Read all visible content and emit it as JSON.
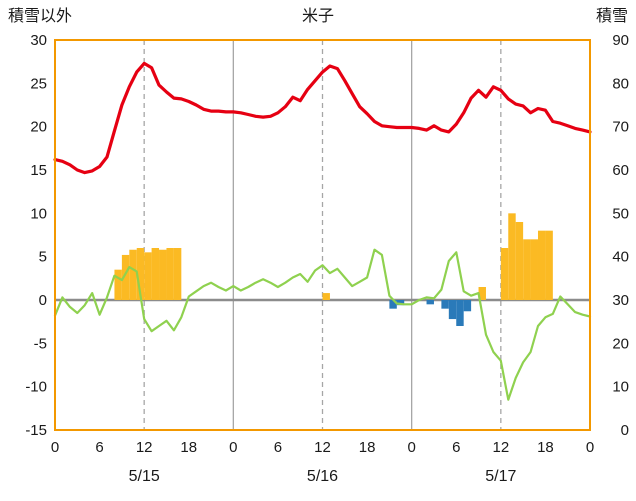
{
  "header": {
    "left_axis_title": "積雪以外",
    "chart_title": "米子",
    "right_axis_title": "積雪"
  },
  "chart_data": {
    "type": "combo",
    "title": "米子",
    "left_axis": {
      "label": "積雪以外",
      "min": -15,
      "max": 30,
      "ticks": [
        30,
        25,
        20,
        15,
        10,
        5,
        0,
        -5,
        -10,
        -15
      ]
    },
    "right_axis": {
      "label": "積雪",
      "min": 0,
      "max": 90,
      "ticks": [
        90,
        80,
        70,
        60,
        50,
        40,
        30,
        20,
        10,
        0
      ]
    },
    "x_axis": {
      "hours_total": 72,
      "tick_interval_hours": 6,
      "tick_labels": [
        "0",
        "6",
        "12",
        "18",
        "0",
        "6",
        "12",
        "18",
        "0",
        "6",
        "12",
        "18",
        "0"
      ],
      "day_labels": [
        "5/15",
        "5/16",
        "5/17"
      ],
      "day_label_hours": [
        12,
        36,
        60
      ],
      "solid_grid_hours": [
        24,
        48
      ],
      "dashed_grid_hours": [
        12,
        36,
        60
      ]
    },
    "colors": {
      "red_line": "#e60012",
      "green_line": "#8fd14f",
      "yellow_bars": "#fbba23",
      "blue_bars": "#2a7ab9",
      "frame": "#f39800",
      "grid": "#a6a6a6",
      "zero_line": "#8c8c8c",
      "text": "#1a1a1a"
    },
    "grid": "vertical-only",
    "legend_position": "none",
    "series": [
      {
        "name": "red-line",
        "type": "line",
        "axis": "left",
        "color_key": "red_line",
        "width": 3.2,
        "values": [
          16.2,
          16.0,
          15.6,
          15.0,
          14.7,
          14.9,
          15.4,
          16.5,
          19.5,
          22.5,
          24.6,
          26.3,
          27.3,
          26.8,
          24.8,
          24.0,
          23.3,
          23.2,
          22.9,
          22.5,
          22.0,
          21.8,
          21.8,
          21.7,
          21.7,
          21.6,
          21.4,
          21.2,
          21.1,
          21.2,
          21.6,
          22.3,
          23.4,
          23.0,
          24.3,
          25.3,
          26.3,
          27.0,
          26.7,
          25.3,
          23.8,
          22.3,
          21.5,
          20.6,
          20.1,
          20.0,
          19.9,
          19.9,
          19.9,
          19.8,
          19.6,
          20.1,
          19.6,
          19.4,
          20.3,
          21.6,
          23.3,
          24.2,
          23.4,
          24.6,
          24.2,
          23.2,
          22.6,
          22.4,
          21.6,
          22.1,
          21.9,
          20.6,
          20.4,
          20.1,
          19.8,
          19.6,
          19.4
        ]
      },
      {
        "name": "green-line",
        "type": "line",
        "axis": "left",
        "color_key": "green_line",
        "width": 2.2,
        "values": [
          -1.8,
          0.3,
          -0.8,
          -1.5,
          -0.6,
          0.8,
          -1.7,
          0.3,
          2.8,
          2.3,
          3.8,
          3.3,
          -2.2,
          -3.6,
          -3.0,
          -2.4,
          -3.5,
          -2.0,
          0.4,
          1.0,
          1.6,
          2.0,
          1.5,
          1.1,
          1.6,
          1.1,
          1.5,
          2.0,
          2.4,
          2.0,
          1.5,
          2.0,
          2.6,
          3.0,
          2.1,
          3.4,
          4.0,
          3.1,
          3.6,
          2.6,
          1.6,
          2.1,
          2.6,
          5.8,
          5.2,
          0.5,
          -0.4,
          -0.5,
          -0.5,
          0.0,
          0.3,
          0.2,
          1.2,
          4.5,
          5.5,
          1.0,
          0.5,
          0.8,
          -4.0,
          -6.0,
          -7.0,
          -11.5,
          -9.0,
          -7.2,
          -6.0,
          -3.0,
          -2.0,
          -1.6,
          0.4,
          -0.5,
          -1.4,
          -1.7,
          -1.9
        ]
      },
      {
        "name": "yellow-bars",
        "type": "bar",
        "axis": "left",
        "color_key": "yellow_bars",
        "hours": [
          8,
          9,
          10,
          11,
          12,
          13,
          14,
          15,
          16,
          36,
          57,
          60,
          61,
          62,
          63,
          64,
          65,
          66
        ],
        "values": [
          3.5,
          5.2,
          5.8,
          6.0,
          5.5,
          6.0,
          5.8,
          6.0,
          6.0,
          0.8,
          1.5,
          6.0,
          10.0,
          9.0,
          7.0,
          7.0,
          8.0,
          8.0
        ]
      },
      {
        "name": "blue-bars",
        "type": "bar",
        "axis": "left",
        "color_key": "blue_bars",
        "hours": [
          45,
          46,
          50,
          52,
          53,
          54,
          55
        ],
        "values": [
          -1.0,
          -0.6,
          -0.5,
          -1.0,
          -2.2,
          -3.0,
          -1.3
        ]
      }
    ]
  }
}
